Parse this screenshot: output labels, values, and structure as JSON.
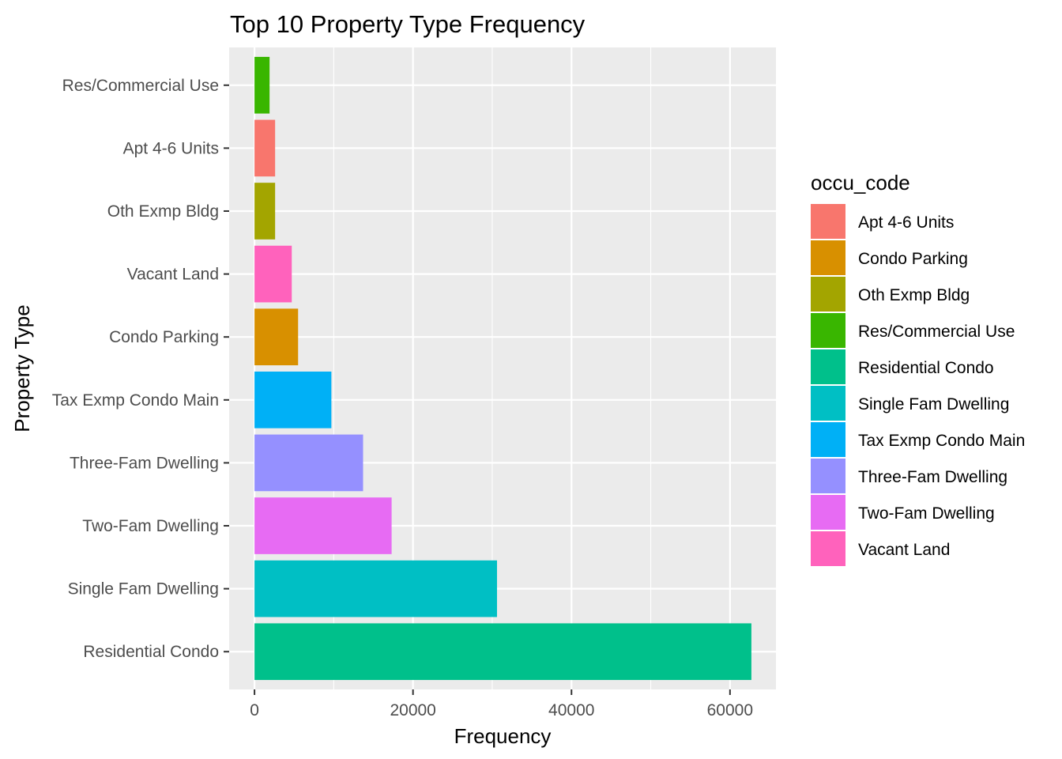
{
  "chart_data": {
    "type": "bar",
    "orientation": "horizontal",
    "title": "Top 10 Property Type Frequency",
    "xlabel": "Frequency",
    "ylabel": "Property Type",
    "xlim": [
      -3200,
      65800
    ],
    "xticks": [
      0,
      20000,
      40000,
      60000
    ],
    "xtick_labels": [
      "0",
      "20000",
      "40000",
      "60000"
    ],
    "grid": true,
    "legend_position": "right",
    "legend_title": "occu_code",
    "categories": [
      "Residential Condo",
      "Single Fam Dwelling",
      "Two-Fam Dwelling",
      "Three-Fam Dwelling",
      "Tax Exmp Condo Main",
      "Condo Parking",
      "Vacant Land",
      "Oth Exmp Bldg",
      "Apt 4-6 Units",
      "Res/Commercial Use"
    ],
    "values": [
      62700,
      30600,
      17300,
      13700,
      9700,
      5500,
      4700,
      2600,
      2600,
      1900
    ],
    "bar_colors": [
      "#00C08B",
      "#00BFC4",
      "#E76BF3",
      "#9590FF",
      "#00B0F6",
      "#D89000",
      "#FF62BC",
      "#A3A500",
      "#F8766D",
      "#39B600"
    ],
    "legend": [
      {
        "label": "Apt 4-6 Units",
        "color": "#F8766D"
      },
      {
        "label": "Condo Parking",
        "color": "#D89000"
      },
      {
        "label": "Oth Exmp Bldg",
        "color": "#A3A500"
      },
      {
        "label": "Res/Commercial Use",
        "color": "#39B600"
      },
      {
        "label": "Residential Condo",
        "color": "#00C08B"
      },
      {
        "label": "Single Fam Dwelling",
        "color": "#00BFC4"
      },
      {
        "label": "Tax Exmp Condo Main",
        "color": "#00B0F6"
      },
      {
        "label": "Three-Fam Dwelling",
        "color": "#9590FF"
      },
      {
        "label": "Two-Fam Dwelling",
        "color": "#E76BF3"
      },
      {
        "label": "Vacant Land",
        "color": "#FF62BC"
      }
    ],
    "panel_background": "#EBEBEB",
    "gridline_color": "#FFFFFF"
  }
}
